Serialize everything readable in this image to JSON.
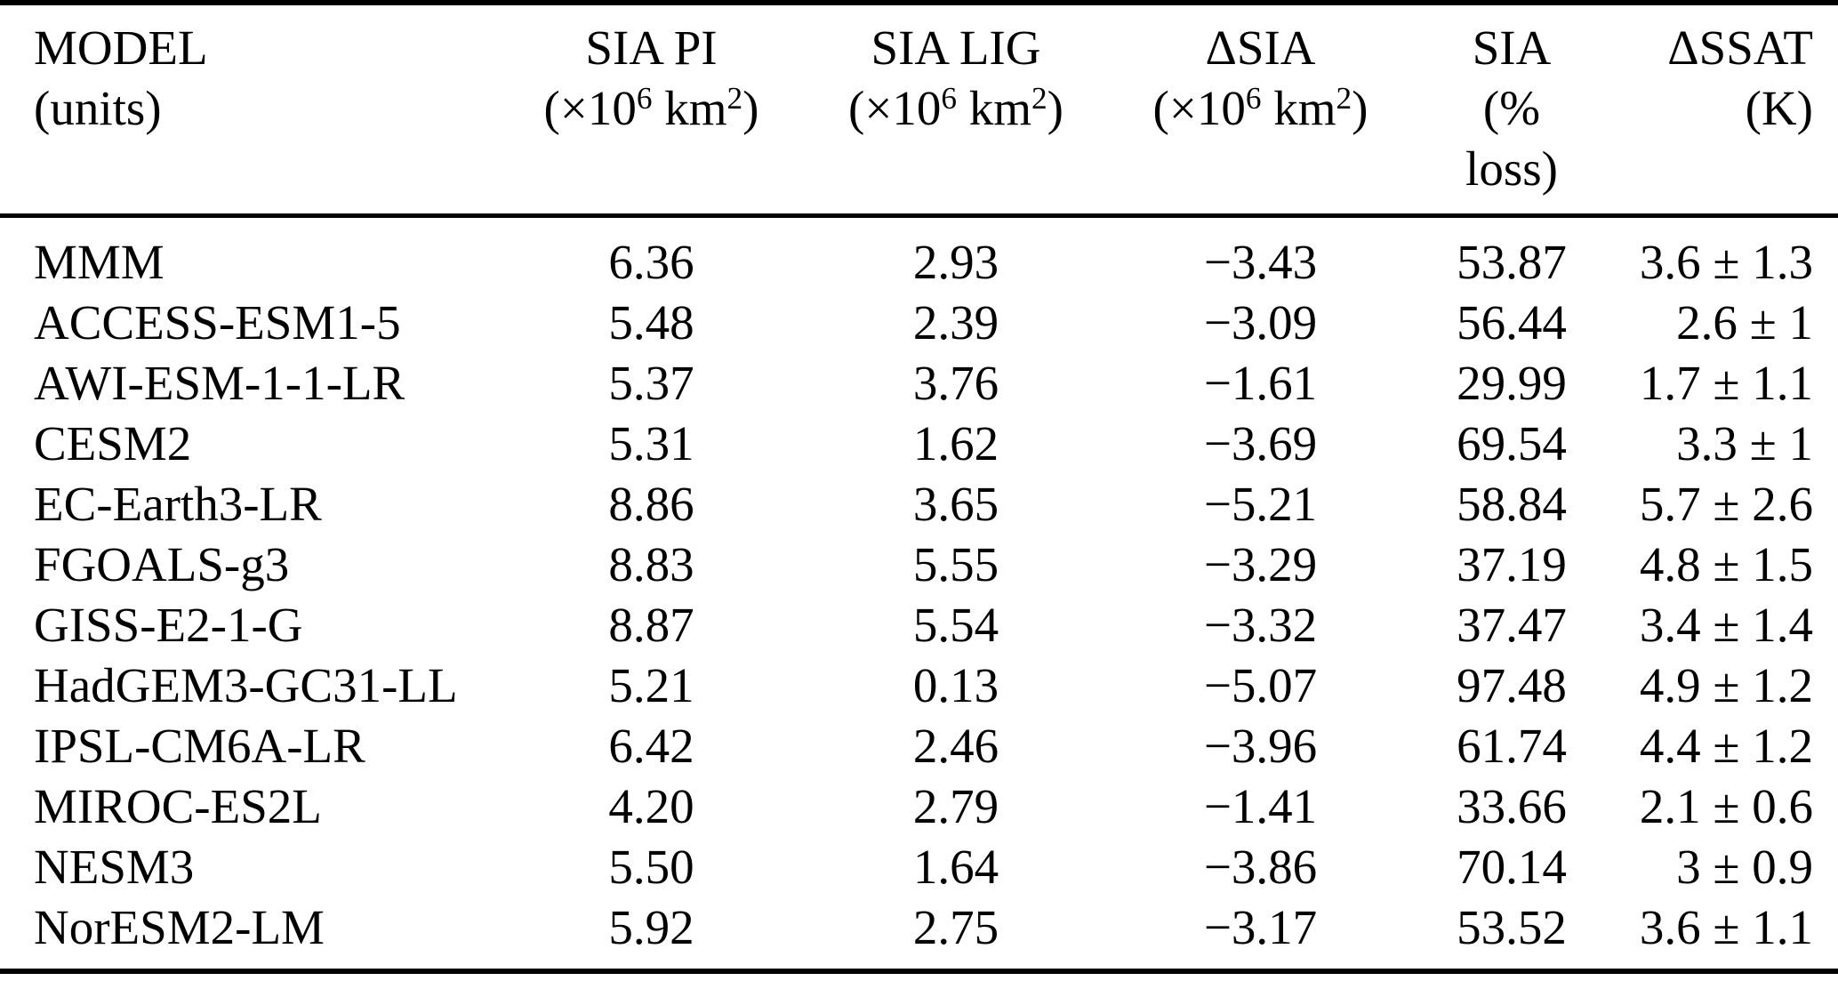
{
  "page": {
    "background_color": "#ffffff",
    "text_color": "#000000"
  },
  "table": {
    "header": {
      "model": {
        "title": "MODEL",
        "unit": "(units)"
      },
      "sia_pi": {
        "title": "SIA PI"
      },
      "sia_lig": {
        "title": "SIA LIG"
      },
      "delta_sia": {
        "title": "ΔSIA"
      },
      "sia_loss": {
        "title": "SIA",
        "unit_line1": "(%",
        "unit_line2": "loss)"
      },
      "delta_ssat": {
        "title": "ΔSSAT",
        "unit": "(K)"
      },
      "area_unit_parts": {
        "open": "(×10",
        "exponent": "6",
        "mid": " km",
        "exponent2": "2",
        "close": ")"
      }
    },
    "rows": [
      {
        "model": "MMM",
        "sia_pi": "6.36",
        "sia_lig": "2.93",
        "delta_sia": "−3.43",
        "sia_loss": "53.87",
        "delta_ssat": "3.6 ± 1.3"
      },
      {
        "model": "ACCESS-ESM1-5",
        "sia_pi": "5.48",
        "sia_lig": "2.39",
        "delta_sia": "−3.09",
        "sia_loss": "56.44",
        "delta_ssat": "2.6 ± 1"
      },
      {
        "model": "AWI-ESM-1-1-LR",
        "sia_pi": "5.37",
        "sia_lig": "3.76",
        "delta_sia": "−1.61",
        "sia_loss": "29.99",
        "delta_ssat": "1.7 ± 1.1"
      },
      {
        "model": "CESM2",
        "sia_pi": "5.31",
        "sia_lig": "1.62",
        "delta_sia": "−3.69",
        "sia_loss": "69.54",
        "delta_ssat": "3.3 ± 1"
      },
      {
        "model": "EC-Earth3-LR",
        "sia_pi": "8.86",
        "sia_lig": "3.65",
        "delta_sia": "−5.21",
        "sia_loss": "58.84",
        "delta_ssat": "5.7 ± 2.6"
      },
      {
        "model": "FGOALS-g3",
        "sia_pi": "8.83",
        "sia_lig": "5.55",
        "delta_sia": "−3.29",
        "sia_loss": "37.19",
        "delta_ssat": "4.8 ± 1.5"
      },
      {
        "model": "GISS-E2-1-G",
        "sia_pi": "8.87",
        "sia_lig": "5.54",
        "delta_sia": "−3.32",
        "sia_loss": "37.47",
        "delta_ssat": "3.4 ± 1.4"
      },
      {
        "model": "HadGEM3-GC31-LL",
        "sia_pi": "5.21",
        "sia_lig": "0.13",
        "delta_sia": "−5.07",
        "sia_loss": "97.48",
        "delta_ssat": "4.9 ± 1.2"
      },
      {
        "model": "IPSL-CM6A-LR",
        "sia_pi": "6.42",
        "sia_lig": "2.46",
        "delta_sia": "−3.96",
        "sia_loss": "61.74",
        "delta_ssat": "4.4 ± 1.2"
      },
      {
        "model": "MIROC-ES2L",
        "sia_pi": "4.20",
        "sia_lig": "2.79",
        "delta_sia": "−1.41",
        "sia_loss": "33.66",
        "delta_ssat": "2.1 ± 0.6"
      },
      {
        "model": "NESM3",
        "sia_pi": "5.50",
        "sia_lig": "1.64",
        "delta_sia": "−3.86",
        "sia_loss": "70.14",
        "delta_ssat": "3 ± 0.9"
      },
      {
        "model": "NorESM2-LM",
        "sia_pi": "5.92",
        "sia_lig": "2.75",
        "delta_sia": "−3.17",
        "sia_loss": "53.52",
        "delta_ssat": "3.6 ± 1.1"
      }
    ]
  }
}
